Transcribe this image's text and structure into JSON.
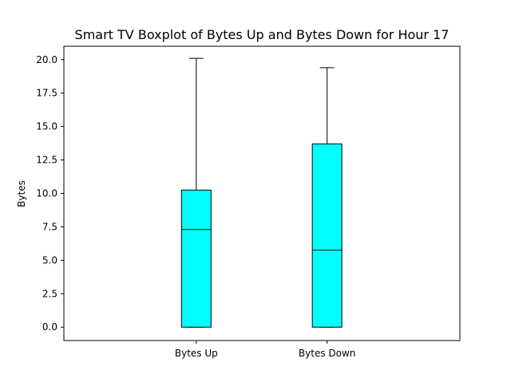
{
  "chart_data": {
    "type": "boxplot",
    "title": "Smart TV Boxplot of Bytes Up and Bytes Down for Hour 17",
    "xlabel": "",
    "ylabel": "Bytes",
    "categories": [
      "Bytes Up",
      "Bytes Down"
    ],
    "boxes": [
      {
        "category": "Bytes Up",
        "whisker_low": 0.0,
        "q1": 0.0,
        "median": 7.3,
        "q3": 10.25,
        "whisker_high": 20.1
      },
      {
        "category": "Bytes Down",
        "whisker_low": 0.0,
        "q1": 0.0,
        "median": 5.75,
        "q3": 13.7,
        "whisker_high": 19.4
      }
    ],
    "ylim": [
      -1.0,
      21.0
    ],
    "yticks": [
      0.0,
      2.5,
      5.0,
      7.5,
      10.0,
      12.5,
      15.0,
      17.5,
      20.0
    ],
    "ytick_labels": [
      "0.0",
      "2.5",
      "5.0",
      "7.5",
      "10.0",
      "12.5",
      "15.0",
      "17.5",
      "20.0"
    ],
    "grid": false,
    "legend": "none",
    "colors": {
      "box_fill": "#00ffff",
      "box_edge": "#000000",
      "median": "#000000",
      "whisker": "#000000",
      "background": "#ffffff"
    }
  }
}
